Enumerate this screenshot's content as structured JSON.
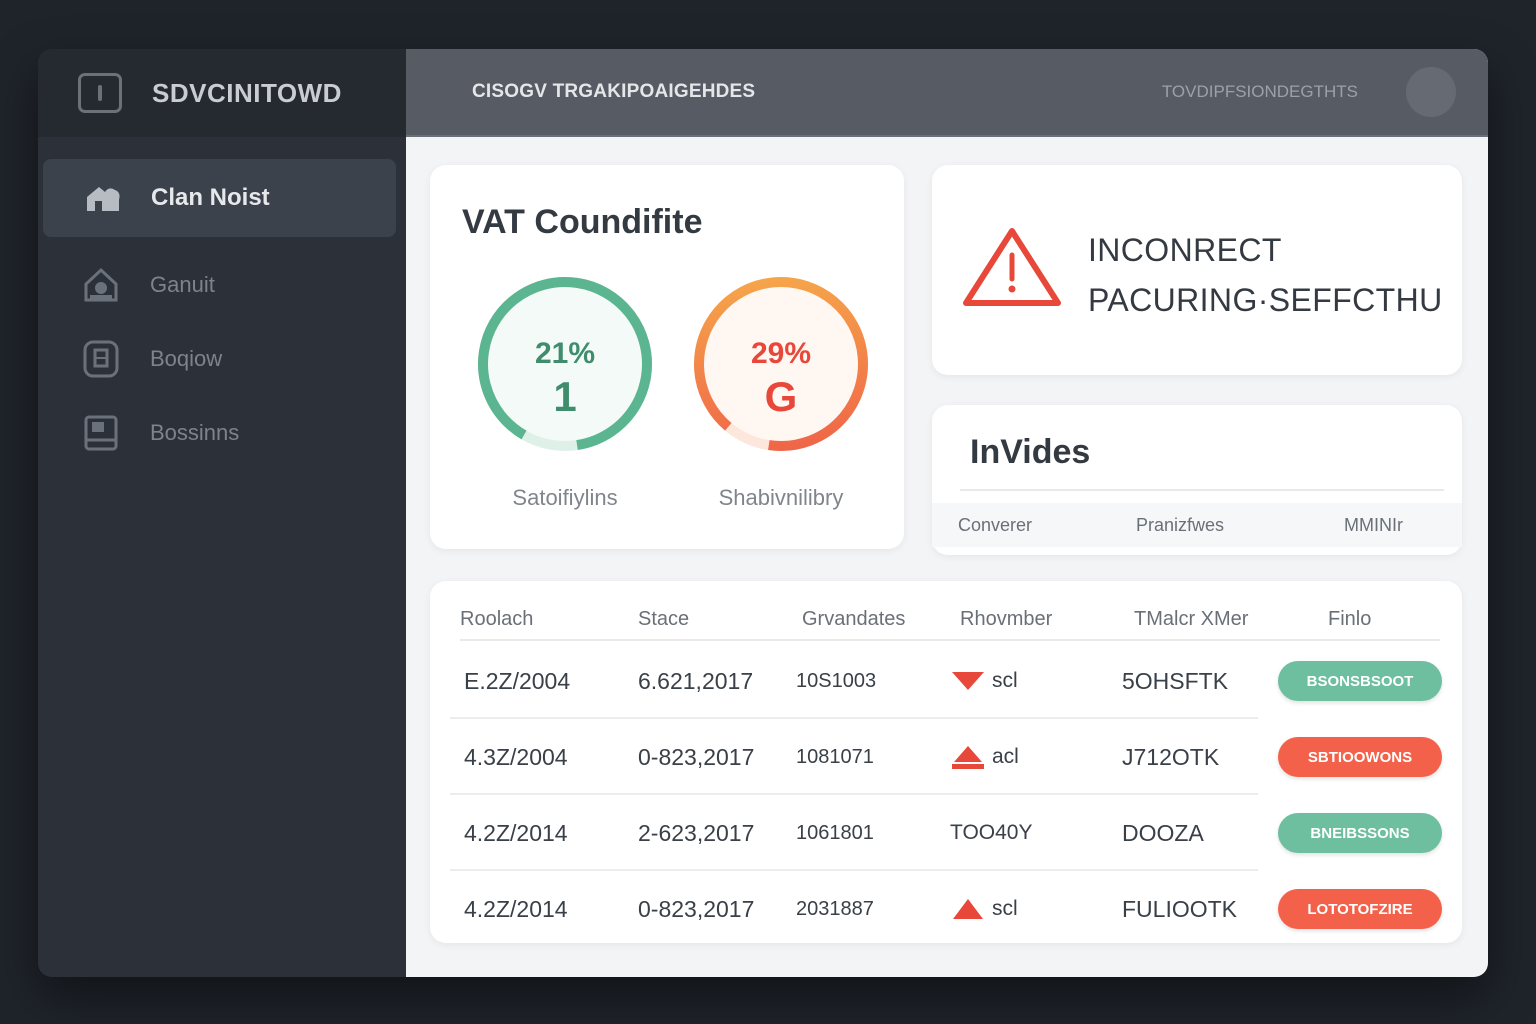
{
  "app": {
    "brand": "SDVCINITOWD"
  },
  "sidebar": {
    "items": [
      {
        "label": "Clan Noist",
        "icon": "cloud-home-icon",
        "active": true
      },
      {
        "label": "Ganuit",
        "icon": "house-icon",
        "active": false
      },
      {
        "label": "Boqiow",
        "icon": "document-icon",
        "active": false
      },
      {
        "label": "Bossinns",
        "icon": "book-icon",
        "active": false
      }
    ]
  },
  "header": {
    "title": "CISOGV TRGAKIPOAIGEHDES",
    "meta": "TOVDIPFSIONDEGTHTS"
  },
  "vat": {
    "title": "VAT Coundifite",
    "gauges": [
      {
        "percent": "21%",
        "value": "1",
        "label": "Satoifiylins",
        "color": "#5bb590"
      },
      {
        "percent": "29%",
        "value": "G",
        "label": "Shabivnilibry",
        "color_start": "#f6a04a",
        "color_end": "#ef5a48"
      }
    ]
  },
  "alert": {
    "line1": "INCONRECT",
    "line2": "PACURING·SEFFCTHU"
  },
  "invides": {
    "title": "InVides",
    "columns": [
      "Converer",
      "Pranizfwes",
      "MMINIr"
    ]
  },
  "table": {
    "columns": [
      "Roolach",
      "Stace",
      "Grvandates",
      "Rhovmber",
      "TMalcr XMer",
      "Finlo"
    ],
    "rows": [
      {
        "c0": "E.2Z/2004",
        "c1": "6.621,2017",
        "c2": "10S1003",
        "c3": "scl",
        "c3_mark": "down",
        "c4": "5OHSFTK",
        "status": "BSONSBSOOT",
        "status_color": "green"
      },
      {
        "c0": "4.3Z/2004",
        "c1": "0-823,2017",
        "c2": "1081071",
        "c3": "acl",
        "c3_mark": "up",
        "c4": "J712OTK",
        "status": "SBTIOOWONS",
        "status_color": "red"
      },
      {
        "c0": "4.2Z/2014",
        "c1": "2-623,2017",
        "c2": "1061801",
        "c3": "TOO40Y",
        "c3_mark": "none",
        "c4": "DOOZA",
        "status": "BNEIBSSONS",
        "status_color": "green"
      },
      {
        "c0": "4.2Z/2014",
        "c1": "0-823,2017",
        "c2": "2031887",
        "c3": "scl",
        "c3_mark": "up",
        "c4": "FULIOOTK",
        "status": "LOTOTOFZIRE",
        "status_color": "red"
      }
    ]
  },
  "colors": {
    "green": "#6dbf9f",
    "red": "#f4614a",
    "warning": "#e8483a"
  }
}
